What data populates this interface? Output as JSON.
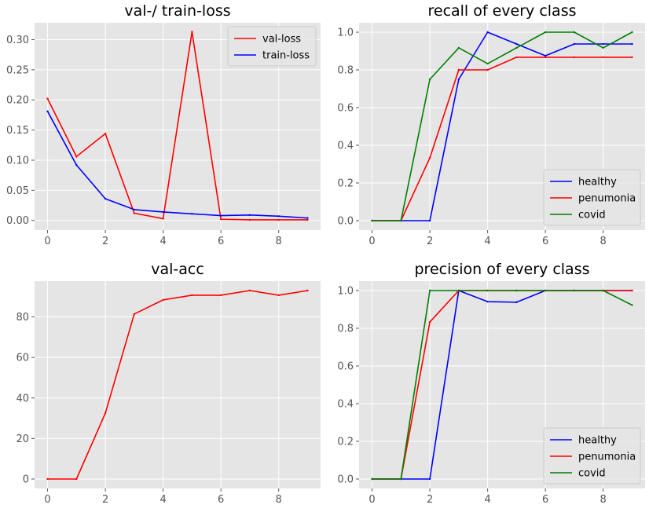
{
  "chart_data": [
    {
      "type": "line",
      "title": "val-/ train-loss",
      "x": [
        0,
        1,
        2,
        3,
        4,
        5,
        6,
        7,
        8,
        9
      ],
      "xlim": [
        -0.45,
        9.45
      ],
      "ylim": [
        -0.016,
        0.328
      ],
      "xticks": [
        "0",
        "2",
        "4",
        "6",
        "8"
      ],
      "yticks": [
        "0.00",
        "0.05",
        "0.10",
        "0.15",
        "0.20",
        "0.25",
        "0.30"
      ],
      "legend_position": "top-right",
      "series": [
        {
          "name": "val-loss",
          "color": "#ff0000",
          "values": [
            0.202,
            0.106,
            0.144,
            0.012,
            0.003,
            0.313,
            0.002,
            0.001,
            0.001,
            0.001
          ]
        },
        {
          "name": "train-loss",
          "color": "#0000ff",
          "values": [
            0.181,
            0.092,
            0.036,
            0.018,
            0.014,
            0.011,
            0.008,
            0.009,
            0.007,
            0.004
          ]
        }
      ]
    },
    {
      "type": "line",
      "title": "recall of every class",
      "x": [
        0,
        1,
        2,
        3,
        4,
        5,
        6,
        7,
        8,
        9
      ],
      "xlim": [
        -0.45,
        9.45
      ],
      "ylim": [
        -0.05,
        1.05
      ],
      "xticks": [
        "0",
        "2",
        "4",
        "6",
        "8"
      ],
      "yticks": [
        "0.0",
        "0.2",
        "0.4",
        "0.6",
        "0.8",
        "1.0"
      ],
      "legend_position": "bottom-right",
      "series": [
        {
          "name": "healthy",
          "color": "#0000ff",
          "values": [
            0,
            0,
            0,
            0.75,
            1.0,
            0.9375,
            0.875,
            0.9375,
            0.9375,
            0.9375
          ]
        },
        {
          "name": "penumonia",
          "color": "#ff0000",
          "values": [
            0,
            0,
            0.333,
            0.8,
            0.8,
            0.867,
            0.867,
            0.867,
            0.867,
            0.867
          ]
        },
        {
          "name": "covid",
          "color": "#008000",
          "values": [
            0,
            0,
            0.75,
            0.917,
            0.833,
            0.917,
            1.0,
            1.0,
            0.917,
            1.0
          ]
        }
      ]
    },
    {
      "type": "line",
      "title": "val-acc",
      "x": [
        0,
        1,
        2,
        3,
        4,
        5,
        6,
        7,
        8,
        9
      ],
      "xlim": [
        -0.45,
        9.45
      ],
      "ylim": [
        -4.65,
        97.65
      ],
      "xticks": [
        "0",
        "2",
        "4",
        "6",
        "8"
      ],
      "yticks": [
        "0",
        "20",
        "40",
        "60",
        "80"
      ],
      "series": [
        {
          "color": "#ff0000",
          "values": [
            0,
            0,
            32.5,
            81.4,
            88.4,
            90.7,
            90.7,
            93.0,
            90.7,
            93.0
          ]
        }
      ]
    },
    {
      "type": "line",
      "title": "precision of every class",
      "x": [
        0,
        1,
        2,
        3,
        4,
        5,
        6,
        7,
        8,
        9
      ],
      "xlim": [
        -0.45,
        9.45
      ],
      "ylim": [
        -0.05,
        1.05
      ],
      "xticks": [
        "0",
        "2",
        "4",
        "6",
        "8"
      ],
      "yticks": [
        "0.0",
        "0.2",
        "0.4",
        "0.6",
        "0.8",
        "1.0"
      ],
      "legend_position": "bottom-right",
      "series": [
        {
          "name": "healthy",
          "color": "#0000ff",
          "values": [
            0,
            0,
            0,
            1.0,
            0.941,
            0.938,
            1.0,
            1.0,
            1.0,
            1.0
          ]
        },
        {
          "name": "penumonia",
          "color": "#ff0000",
          "values": [
            0,
            0,
            0.833,
            1.0,
            1.0,
            1.0,
            1.0,
            1.0,
            1.0,
            1.0
          ]
        },
        {
          "name": "covid",
          "color": "#008000",
          "values": [
            0,
            0,
            1.0,
            1.0,
            1.0,
            1.0,
            1.0,
            1.0,
            1.0,
            0.923
          ]
        }
      ]
    }
  ]
}
